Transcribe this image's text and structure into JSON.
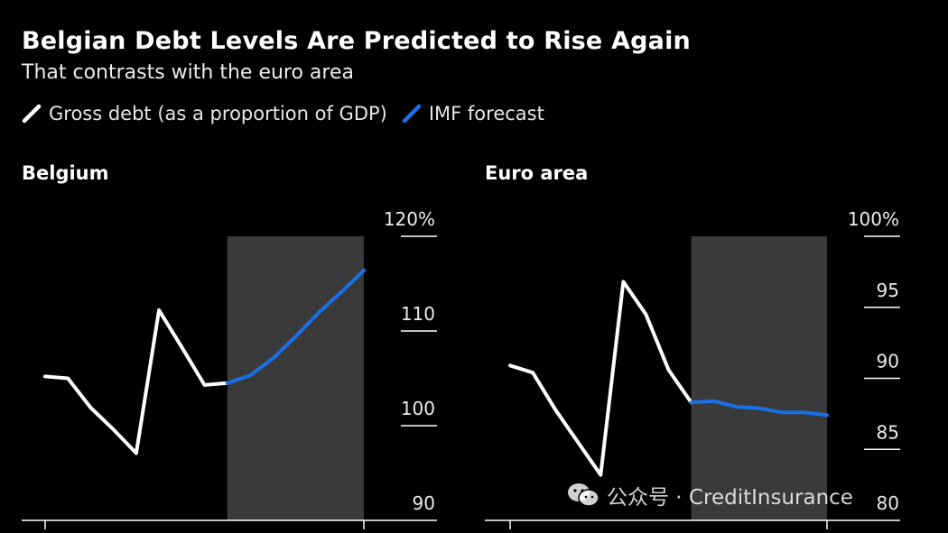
{
  "title": "Belgian Debt Levels Are Predicted to Rise Again",
  "subtitle": "That contrasts with the euro area",
  "legend": [
    {
      "label": "Gross debt (as a proportion of GDP)",
      "color": "#ffffff"
    },
    {
      "label": "IMF forecast",
      "color": "#1a6fe6"
    }
  ],
  "watermark": {
    "text": "公众号 · CreditInsurance",
    "icon": "wechat-icon"
  },
  "colors": {
    "actual": "#ffffff",
    "forecast": "#1a6fe6",
    "shade": "#3a3a3a",
    "grid": "#ffffff"
  },
  "chart_data": [
    {
      "type": "line",
      "title": "Belgium",
      "ylim": [
        90,
        120
      ],
      "yticks": [
        90,
        100,
        110,
        120
      ],
      "ytick_labels": [
        "90",
        "100",
        "110",
        "120%"
      ],
      "x_count": 15,
      "shade_start_index": 8,
      "shade_end_index": 14,
      "series": [
        {
          "name": "Gross debt (as a proportion of GDP)",
          "x": [
            0,
            1,
            2,
            3,
            4,
            5,
            6,
            7,
            8
          ],
          "values": [
            105.2,
            105.0,
            101.9,
            99.6,
            97.1,
            112.2,
            108.3,
            104.3,
            104.5
          ]
        },
        {
          "name": "IMF forecast",
          "x": [
            8,
            9,
            10,
            11,
            12,
            13,
            14
          ],
          "values": [
            104.5,
            105.3,
            107.1,
            109.4,
            111.9,
            114.1,
            116.4
          ]
        }
      ]
    },
    {
      "type": "line",
      "title": "Euro area",
      "ylim": [
        80,
        100
      ],
      "yticks": [
        80,
        85,
        90,
        95,
        100
      ],
      "ytick_labels": [
        "80",
        "85",
        "90",
        "95",
        "100%"
      ],
      "x_count": 15,
      "shade_start_index": 8,
      "shade_end_index": 14,
      "series": [
        {
          "name": "Gross debt (as a proportion of GDP)",
          "x": [
            0,
            1,
            2,
            3,
            4,
            5,
            6,
            7,
            8
          ],
          "values": [
            90.9,
            90.4,
            87.8,
            85.5,
            83.2,
            96.8,
            94.5,
            90.6,
            88.3
          ]
        },
        {
          "name": "IMF forecast",
          "x": [
            8,
            9,
            10,
            11,
            12,
            13,
            14
          ],
          "values": [
            88.3,
            88.4,
            88.0,
            87.9,
            87.6,
            87.6,
            87.4
          ]
        }
      ]
    }
  ]
}
